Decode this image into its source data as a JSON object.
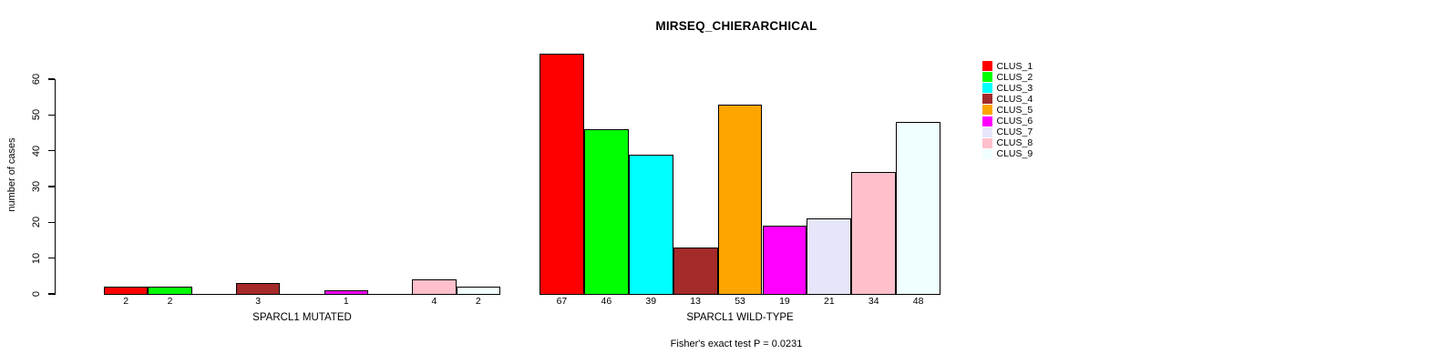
{
  "chart_data": {
    "type": "bar",
    "title": "MIRSEQ_CHIERARCHICAL",
    "ylabel": "number of cases",
    "yticks": [
      0,
      10,
      20,
      30,
      40,
      50,
      60
    ],
    "ylim": [
      0,
      67
    ],
    "grid": false,
    "legend_position": "right",
    "clusters": [
      {
        "name": "CLUS_1",
        "color": "#FF0000"
      },
      {
        "name": "CLUS_2",
        "color": "#00FF00"
      },
      {
        "name": "CLUS_3",
        "color": "#00FFFF"
      },
      {
        "name": "CLUS_4",
        "color": "#A52A2A"
      },
      {
        "name": "CLUS_5",
        "color": "#FFA500"
      },
      {
        "name": "CLUS_6",
        "color": "#FF00FF"
      },
      {
        "name": "CLUS_7",
        "color": "#E6E6FA"
      },
      {
        "name": "CLUS_8",
        "color": "#FFC0CB"
      },
      {
        "name": "CLUS_9",
        "color": "#F0FFFF"
      }
    ],
    "groups": [
      {
        "label": "SPARCL1 MUTATED",
        "values": [
          2,
          2,
          0,
          3,
          0,
          1,
          0,
          4,
          2
        ]
      },
      {
        "label": "SPARCL1 WILD-TYPE",
        "values": [
          67,
          46,
          39,
          13,
          53,
          19,
          21,
          34,
          48
        ]
      }
    ],
    "annotation": "Fisher's exact test P = 0.0231"
  }
}
